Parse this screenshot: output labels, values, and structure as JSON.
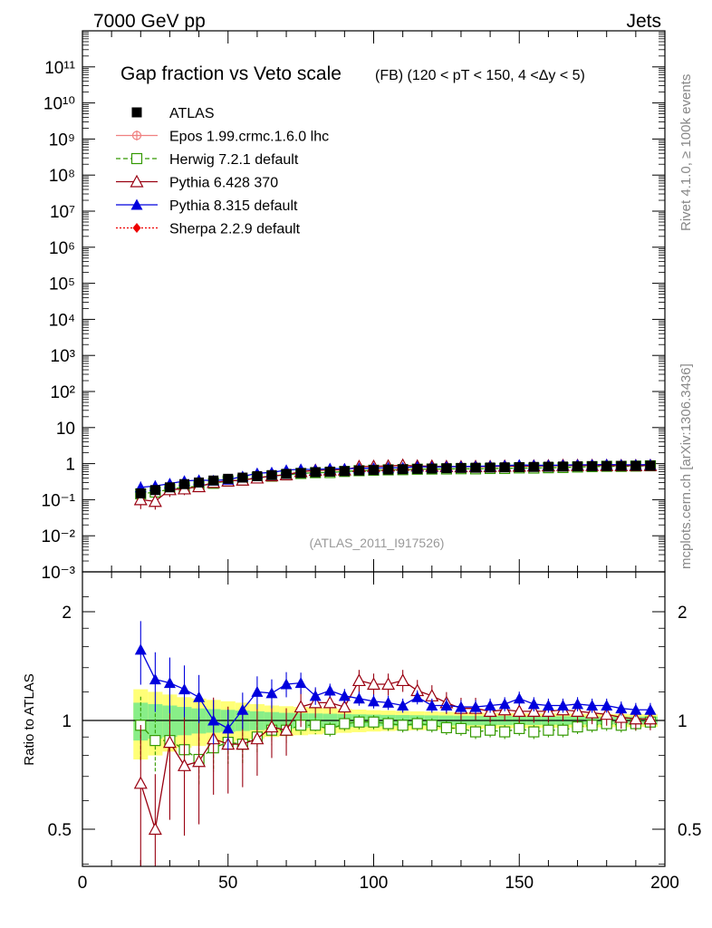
{
  "header": {
    "left": "7000 GeV pp",
    "right": "Jets"
  },
  "side_labels": {
    "rivet": "Rivet 4.1.0, ≥ 100k events",
    "mcplots": "mcplots.cern.ch [arXiv:1306.3436]"
  },
  "chart_data": [
    {
      "type": "scatter",
      "panel": "main",
      "title": "Gap fraction vs Veto scale",
      "subtitle": "(FB) (120 < pT < 150, 4 <Δy < 5)",
      "annotation": "(ATLAS_2011_I917526)",
      "yscale": "log",
      "xlim": [
        0,
        200
      ],
      "ylim": [
        0.001,
        1000000000000
      ],
      "ytick_labels": [
        "10⁻³",
        "10⁻²",
        "10⁻¹",
        "1",
        "10",
        "10²",
        "10³",
        "10⁴",
        "10⁵",
        "10⁶",
        "10⁷",
        "10⁸",
        "10⁹",
        "10¹⁰",
        "10¹¹"
      ],
      "legend_position": "top-left",
      "x": [
        20,
        25,
        30,
        35,
        40,
        45,
        50,
        55,
        60,
        65,
        70,
        75,
        80,
        85,
        90,
        95,
        100,
        105,
        110,
        115,
        120,
        125,
        130,
        135,
        140,
        145,
        150,
        155,
        160,
        165,
        170,
        175,
        180,
        185,
        190,
        195
      ],
      "series": [
        {
          "name": "ATLAS",
          "color": "#000000",
          "marker": "square-filled",
          "values": [
            0.15,
            0.185,
            0.22,
            0.27,
            0.3,
            0.34,
            0.38,
            0.41,
            0.45,
            0.48,
            0.52,
            0.55,
            0.58,
            0.6,
            0.62,
            0.645,
            0.665,
            0.685,
            0.7,
            0.715,
            0.73,
            0.745,
            0.76,
            0.77,
            0.78,
            0.79,
            0.8,
            0.81,
            0.82,
            0.83,
            0.84,
            0.85,
            0.86,
            0.865,
            0.87,
            0.88
          ]
        },
        {
          "name": "Epos 1.99.crmc.1.6.0 lhc",
          "color": "#f08080",
          "marker": "cross-open",
          "line": "solid",
          "values": []
        },
        {
          "name": "Herwig 7.2.1 default",
          "color": "#339900",
          "marker": "square-open",
          "line": "dashed",
          "values": [
            0.145,
            0.163,
            0.194,
            0.224,
            0.234,
            0.285,
            0.33,
            0.352,
            0.405,
            0.449,
            0.489,
            0.534,
            0.563,
            0.567,
            0.608,
            0.638,
            0.658,
            0.672,
            0.68,
            0.701,
            0.708,
            0.712,
            0.722,
            0.716,
            0.734,
            0.735,
            0.76,
            0.753,
            0.77,
            0.78,
            0.806,
            0.825,
            0.843,
            0.839,
            0.855,
            0.871
          ]
        },
        {
          "name": "Pythia 6.428 370",
          "color": "#990011",
          "marker": "triangle-open",
          "line": "solid",
          "values": [
            0.1,
            0.09,
            0.19,
            0.2,
            0.23,
            0.3,
            0.33,
            0.35,
            0.4,
            0.46,
            0.49,
            0.6,
            0.65,
            0.67,
            0.67,
            0.83,
            0.84,
            0.86,
            0.9,
            0.86,
            0.85,
            0.83,
            0.82,
            0.83,
            0.83,
            0.85,
            0.85,
            0.86,
            0.87,
            0.89,
            0.89,
            0.89,
            0.89,
            0.88,
            0.88,
            0.89
          ]
        },
        {
          "name": "Pythia 8.315 default",
          "color": "#0000dd",
          "marker": "triangle-filled",
          "line": "solid",
          "values": [
            0.22,
            0.24,
            0.28,
            0.33,
            0.35,
            0.34,
            0.36,
            0.44,
            0.54,
            0.57,
            0.66,
            0.7,
            0.68,
            0.73,
            0.72,
            0.74,
            0.75,
            0.77,
            0.77,
            0.83,
            0.8,
            0.82,
            0.83,
            0.84,
            0.86,
            0.88,
            0.92,
            0.9,
            0.9,
            0.91,
            0.93,
            0.93,
            0.95,
            0.93,
            0.93,
            0.94
          ]
        },
        {
          "name": "Sherpa 2.2.9 default",
          "color": "#ee0000",
          "marker": "diamond-filled",
          "line": "dotted",
          "values": []
        }
      ]
    },
    {
      "type": "scatter",
      "panel": "ratio",
      "ylabel": "Ratio to ATLAS",
      "xlim": [
        0,
        200
      ],
      "ylim": [
        0.35,
        2.3
      ],
      "xtick_labels": [
        "0",
        "50",
        "100",
        "150",
        "200"
      ],
      "ytick_labels": [
        "0.5",
        "1",
        "2"
      ],
      "x": [
        20,
        25,
        30,
        35,
        40,
        45,
        50,
        55,
        60,
        65,
        70,
        75,
        80,
        85,
        90,
        95,
        100,
        105,
        110,
        115,
        120,
        125,
        130,
        135,
        140,
        145,
        150,
        155,
        160,
        165,
        170,
        175,
        180,
        185,
        190,
        195
      ],
      "bands": {
        "inner_half_width": [
          0.12,
          0.11,
          0.1,
          0.09,
          0.08,
          0.075,
          0.07,
          0.065,
          0.06,
          0.055,
          0.05,
          0.048,
          0.046,
          0.044,
          0.042,
          0.04,
          0.038,
          0.036,
          0.035,
          0.034,
          0.033,
          0.032,
          0.031,
          0.03,
          0.03,
          0.029,
          0.028,
          0.028,
          0.027,
          0.027,
          0.026,
          0.026,
          0.025,
          0.025,
          0.025,
          0.025
        ],
        "outer_half_width": [
          0.22,
          0.2,
          0.18,
          0.16,
          0.15,
          0.14,
          0.13,
          0.12,
          0.11,
          0.1,
          0.095,
          0.09,
          0.085,
          0.08,
          0.076,
          0.072,
          0.068,
          0.065,
          0.062,
          0.06,
          0.058,
          0.056,
          0.054,
          0.052,
          0.05,
          0.049,
          0.048,
          0.047,
          0.046,
          0.045,
          0.044,
          0.043,
          0.042,
          0.042,
          0.041,
          0.04
        ],
        "inner_color": "#88ee88",
        "outer_color": "#ffff77"
      },
      "series": [
        {
          "name": "Herwig 7.2.1 default",
          "color": "#339900",
          "marker": "square-open",
          "line": "dashed",
          "values": [
            0.97,
            0.88,
            0.88,
            0.83,
            0.78,
            0.84,
            0.87,
            0.86,
            0.9,
            0.94,
            0.94,
            0.97,
            0.97,
            0.945,
            0.98,
            0.99,
            0.99,
            0.98,
            0.97,
            0.98,
            0.97,
            0.955,
            0.95,
            0.93,
            0.94,
            0.93,
            0.95,
            0.93,
            0.94,
            0.94,
            0.96,
            0.97,
            0.98,
            0.97,
            0.98,
            0.99
          ]
        },
        {
          "name": "Pythia 6.428 370",
          "color": "#990011",
          "marker": "triangle-open",
          "line": "solid",
          "values": [
            0.67,
            0.5,
            0.87,
            0.75,
            0.77,
            0.89,
            0.86,
            0.86,
            0.89,
            0.96,
            0.94,
            1.09,
            1.12,
            1.12,
            1.09,
            1.29,
            1.26,
            1.26,
            1.29,
            1.21,
            1.17,
            1.12,
            1.08,
            1.08,
            1.06,
            1.07,
            1.06,
            1.06,
            1.06,
            1.07,
            1.06,
            1.05,
            1.04,
            1.02,
            1.01,
            1.01
          ]
        },
        {
          "name": "Pythia 8.315 default",
          "color": "#0000dd",
          "marker": "triangle-filled",
          "line": "solid",
          "values": [
            1.57,
            1.3,
            1.27,
            1.22,
            1.16,
            1.0,
            0.95,
            1.07,
            1.2,
            1.19,
            1.26,
            1.27,
            1.17,
            1.21,
            1.17,
            1.15,
            1.13,
            1.12,
            1.1,
            1.16,
            1.1,
            1.1,
            1.09,
            1.09,
            1.1,
            1.11,
            1.15,
            1.11,
            1.1,
            1.1,
            1.11,
            1.1,
            1.1,
            1.08,
            1.07,
            1.07
          ]
        }
      ]
    }
  ]
}
